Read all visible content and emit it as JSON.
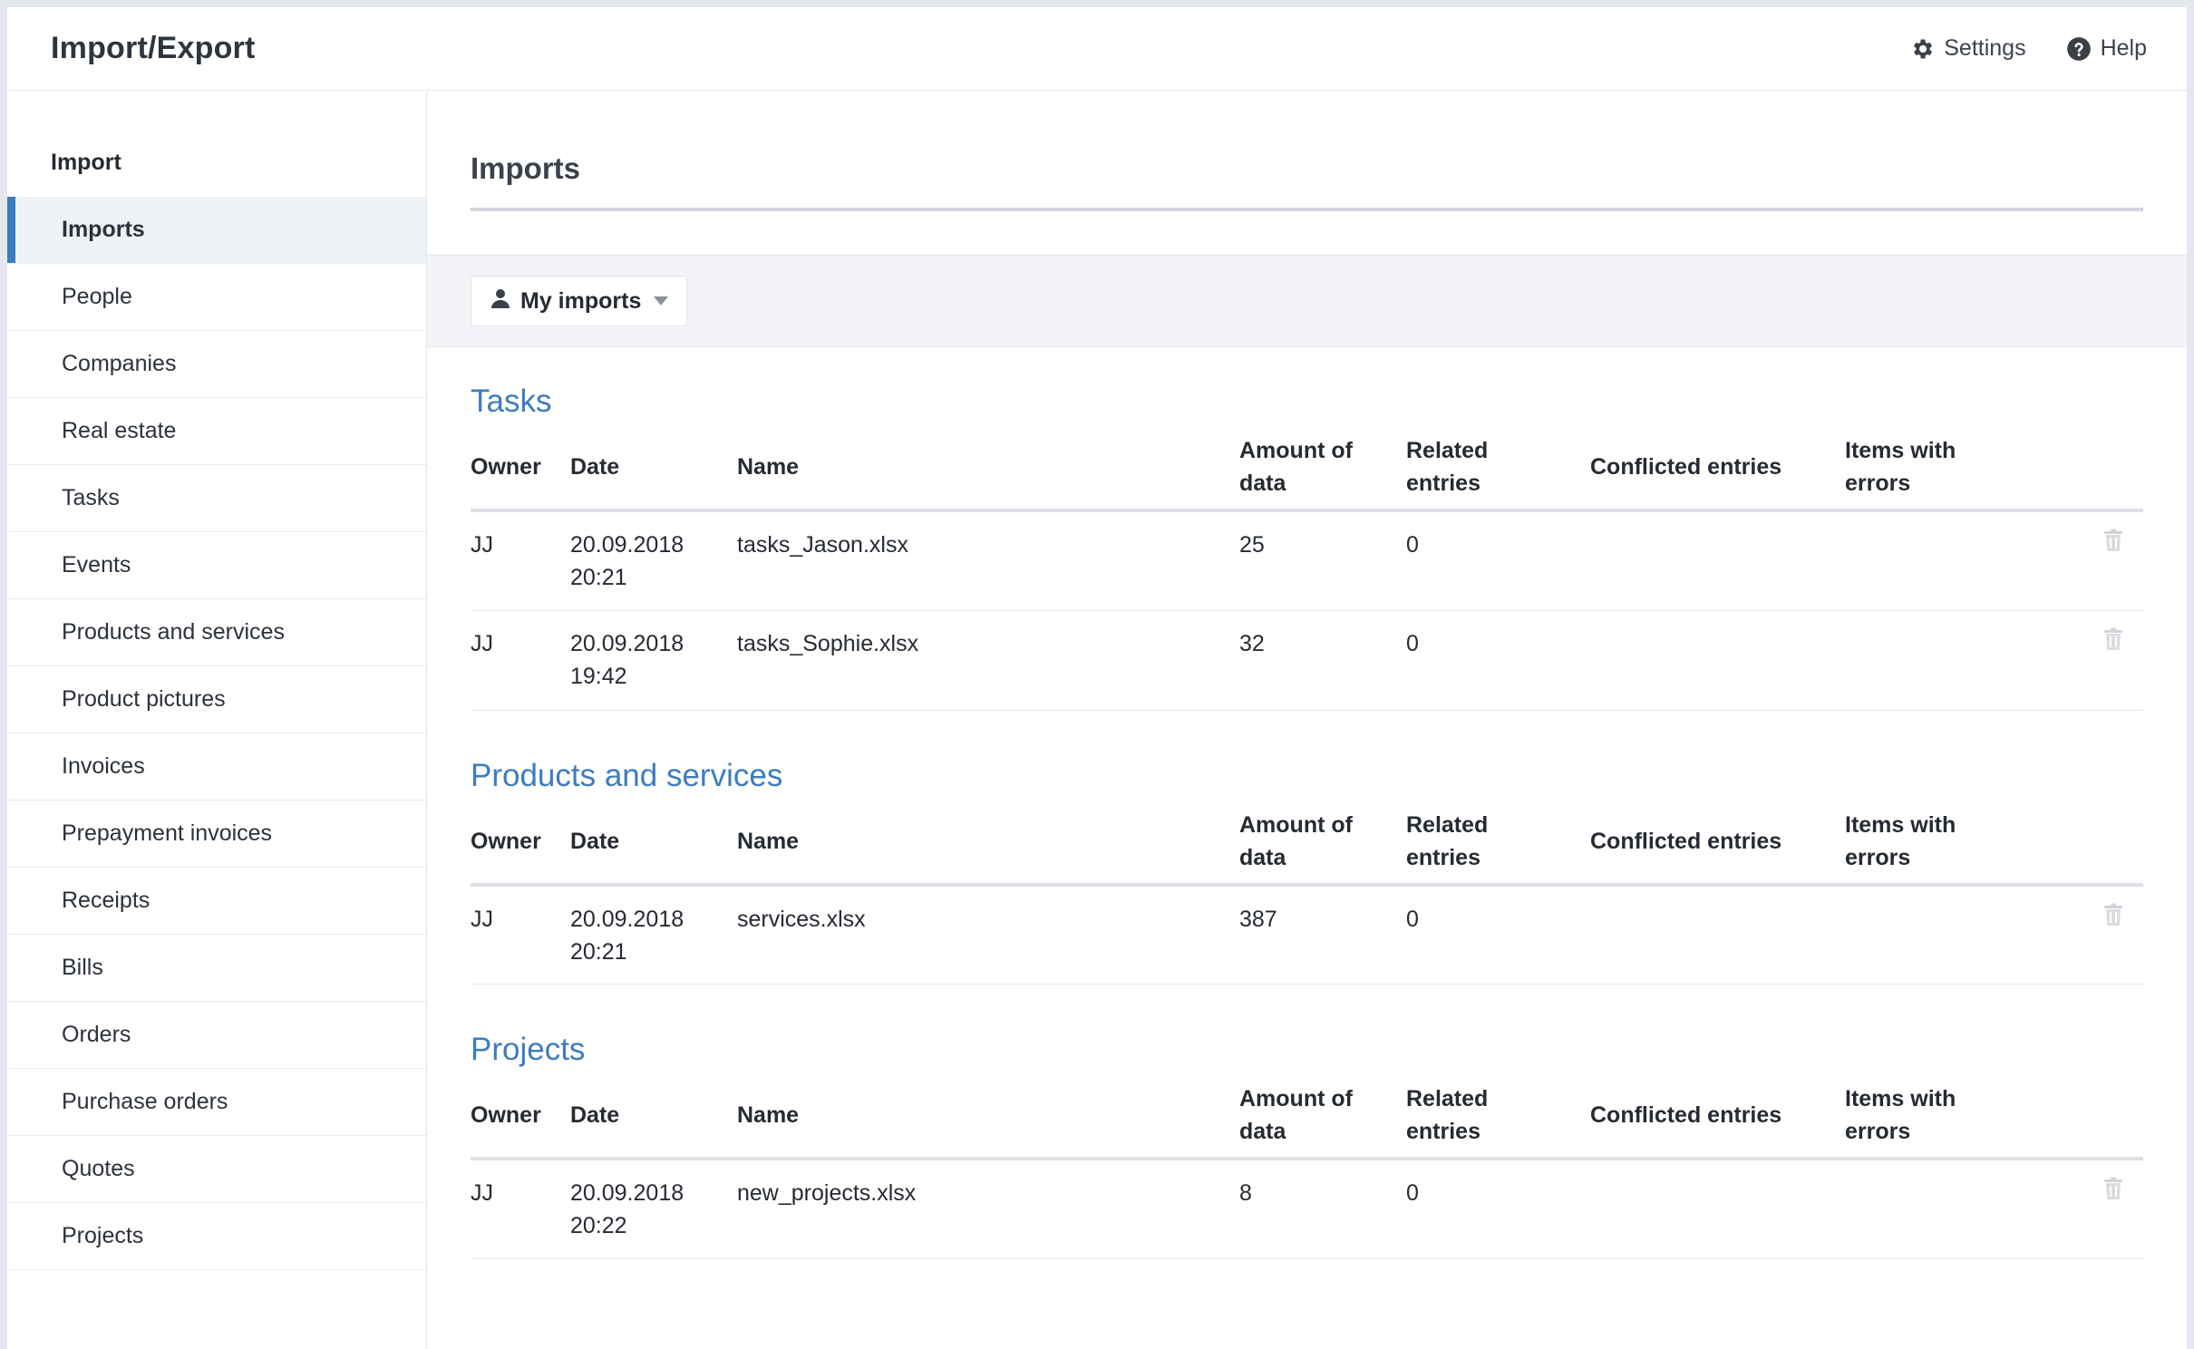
{
  "app": {
    "title": "Import/Export"
  },
  "header": {
    "settings_label": "Settings",
    "help_label": "Help",
    "settings_icon": "gear-icon",
    "help_icon": "question-circle-icon"
  },
  "sidebar": {
    "heading": "Import",
    "items": [
      {
        "label": "Imports",
        "active": true
      },
      {
        "label": "People"
      },
      {
        "label": "Companies"
      },
      {
        "label": "Real estate"
      },
      {
        "label": "Tasks"
      },
      {
        "label": "Events"
      },
      {
        "label": "Products and services"
      },
      {
        "label": "Product pictures"
      },
      {
        "label": "Invoices"
      },
      {
        "label": "Prepayment invoices"
      },
      {
        "label": "Receipts"
      },
      {
        "label": "Bills"
      },
      {
        "label": "Orders"
      },
      {
        "label": "Purchase orders"
      },
      {
        "label": "Quotes"
      },
      {
        "label": "Projects"
      }
    ]
  },
  "main": {
    "title": "Imports",
    "filter": {
      "label": "My imports",
      "icon": "user-icon"
    },
    "columns": {
      "owner": "Owner",
      "date": "Date",
      "name": "Name",
      "amount_line1": "Amount of",
      "amount_line2": "data",
      "related_line1": "Related",
      "related_line2": "entries",
      "conflicted": "Conflicted entries",
      "errors": "Items with errors"
    },
    "sections": [
      {
        "title": "Tasks",
        "rows": [
          {
            "owner": "JJ",
            "date": "20.09.2018",
            "time": "20:21",
            "name": "tasks_Jason.xlsx",
            "amount": "25",
            "related": "0",
            "conflicted": "",
            "errors": ""
          },
          {
            "owner": "JJ",
            "date": "20.09.2018",
            "time": "19:42",
            "name": "tasks_Sophie.xlsx",
            "amount": "32",
            "related": "0",
            "conflicted": "",
            "errors": ""
          }
        ]
      },
      {
        "title": "Products and services",
        "rows": [
          {
            "owner": "JJ",
            "date": "20.09.2018",
            "time": "20:21",
            "name": "services.xlsx",
            "amount": "387",
            "related": "0",
            "conflicted": "",
            "errors": ""
          }
        ]
      },
      {
        "title": "Projects",
        "rows": [
          {
            "owner": "JJ",
            "date": "20.09.2018",
            "time": "20:22",
            "name": "new_projects.xlsx",
            "amount": "8",
            "related": "0",
            "conflicted": "",
            "errors": ""
          }
        ]
      }
    ]
  },
  "colors": {
    "accent": "#3d7cc0",
    "filter_bar": "#f2f4f7",
    "active_nav": "#eef1f5"
  }
}
